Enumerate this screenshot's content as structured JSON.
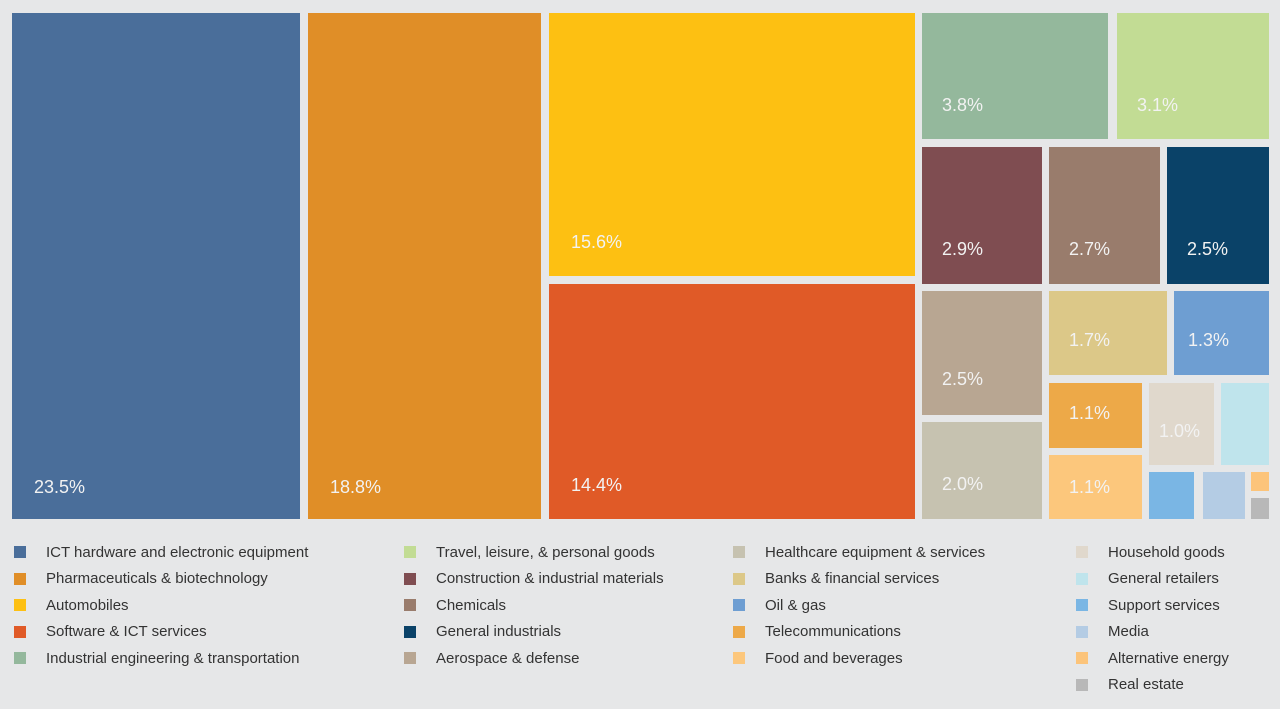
{
  "chart_data": {
    "type": "treemap",
    "categories": [
      {
        "name": "ICT hardware and electronic equipment",
        "value": 23.5,
        "label": "23.5%",
        "color": "#4a6e9a"
      },
      {
        "name": "Pharmaceuticals & biotechnology",
        "value": 18.8,
        "label": "18.8%",
        "color": "#e08e27"
      },
      {
        "name": "Automobiles",
        "value": 15.6,
        "label": "15.6%",
        "color": "#fdc012"
      },
      {
        "name": "Software & ICT services",
        "value": 14.4,
        "label": "14.4%",
        "color": "#e05a27"
      },
      {
        "name": "Industrial engineering & transportation",
        "value": 3.8,
        "label": "3.8%",
        "color": "#94b89c"
      },
      {
        "name": "Travel, leisure, & personal goods",
        "value": 3.1,
        "label": "3.1%",
        "color": "#c2dc94"
      },
      {
        "name": "Construction & industrial materials",
        "value": 2.9,
        "label": "2.9%",
        "color": "#7f4d51"
      },
      {
        "name": "Chemicals",
        "value": 2.7,
        "label": "2.7%",
        "color": "#997c6c"
      },
      {
        "name": "General industrials",
        "value": 2.5,
        "label": "2.5%",
        "color": "#0a4268"
      },
      {
        "name": "Aerospace & defense",
        "value": 2.5,
        "label": "2.5%",
        "color": "#b8a692"
      },
      {
        "name": "Healthcare equipment & services",
        "value": 2.0,
        "label": "2.0%",
        "color": "#c6c2b0"
      },
      {
        "name": "Banks & financial services",
        "value": 1.7,
        "label": "1.7%",
        "color": "#dcc888"
      },
      {
        "name": "Oil & gas",
        "value": 1.3,
        "label": "1.3%",
        "color": "#6e9ed2"
      },
      {
        "name": "Telecommunications",
        "value": 1.1,
        "label": "1.1%",
        "color": "#eda948"
      },
      {
        "name": "Food and beverages",
        "value": 1.1,
        "label": "1.1%",
        "color": "#fcc77c"
      },
      {
        "name": "Household goods",
        "value": 1.0,
        "label": "1.0%",
        "color": "#e0d8cc"
      },
      {
        "name": "General retailers",
        "value": null,
        "label": "",
        "color": "#bfe4ec"
      },
      {
        "name": "Support services",
        "value": null,
        "label": "",
        "color": "#7ab6e4"
      },
      {
        "name": "Media",
        "value": null,
        "label": "",
        "color": "#b4cce4"
      },
      {
        "name": "Alternative energy",
        "value": null,
        "label": "",
        "color": "#fcc47a"
      },
      {
        "name": "Real estate",
        "value": null,
        "label": "",
        "color": "#b8b8b8"
      }
    ],
    "legend_position": "bottom"
  }
}
